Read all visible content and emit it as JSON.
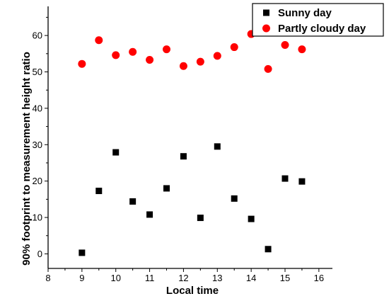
{
  "chart_data": {
    "type": "scatter",
    "xlabel": "Local time",
    "ylabel": "90% footprint to measurement height ratio",
    "xlim": [
      8,
      16.4
    ],
    "ylim": [
      -4,
      68
    ],
    "xticks": [
      8,
      9,
      10,
      11,
      12,
      13,
      14,
      15,
      16
    ],
    "yticks": [
      0,
      10,
      20,
      30,
      40,
      50,
      60
    ],
    "legend_position": "top-right",
    "grid": false,
    "series": [
      {
        "name": "Sunny day",
        "marker": "square",
        "color": "#000000",
        "points": [
          {
            "x": 9,
            "y": 0.3
          },
          {
            "x": 9.5,
            "y": 17.3
          },
          {
            "x": 10,
            "y": 27.9
          },
          {
            "x": 10.5,
            "y": 14.4
          },
          {
            "x": 11,
            "y": 10.8
          },
          {
            "x": 11.5,
            "y": 18.0
          },
          {
            "x": 12,
            "y": 26.8
          },
          {
            "x": 12.5,
            "y": 9.9
          },
          {
            "x": 13,
            "y": 29.5
          },
          {
            "x": 13.5,
            "y": 15.2
          },
          {
            "x": 14,
            "y": 9.6
          },
          {
            "x": 14.5,
            "y": 1.3
          },
          {
            "x": 15,
            "y": 20.7
          },
          {
            "x": 15.5,
            "y": 19.9
          }
        ]
      },
      {
        "name": "Partly cloudy day",
        "marker": "circle",
        "color": "#ff0000",
        "points": [
          {
            "x": 9,
            "y": 52.2
          },
          {
            "x": 9.5,
            "y": 58.7
          },
          {
            "x": 10,
            "y": 54.6
          },
          {
            "x": 10.5,
            "y": 55.5
          },
          {
            "x": 11,
            "y": 53.3
          },
          {
            "x": 11.5,
            "y": 56.2
          },
          {
            "x": 12,
            "y": 51.6
          },
          {
            "x": 12.5,
            "y": 52.8
          },
          {
            "x": 13,
            "y": 54.4
          },
          {
            "x": 13.5,
            "y": 56.8
          },
          {
            "x": 14,
            "y": 60.4
          },
          {
            "x": 14.5,
            "y": 50.8
          },
          {
            "x": 15,
            "y": 57.4
          },
          {
            "x": 15.5,
            "y": 56.2
          }
        ]
      }
    ]
  }
}
